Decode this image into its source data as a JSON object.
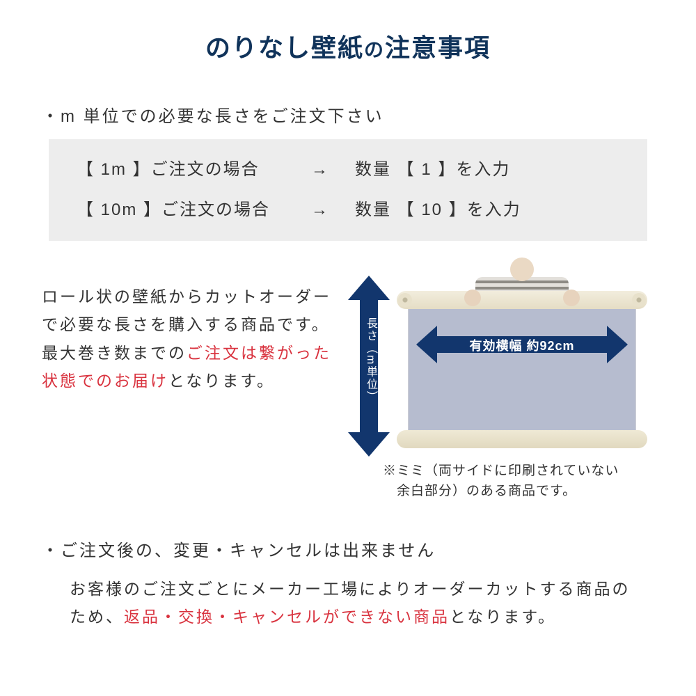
{
  "colors": {
    "title": "#10335a",
    "body": "#333333",
    "emphasis": "#d9333f",
    "box_bg": "#ededed",
    "arrow": "#12366d",
    "paper": "#b6bccf"
  },
  "title": {
    "main": "のりなし壁紙",
    "small": "の",
    "tail": "注意事項"
  },
  "bullet1": "・m 単位での必要な長さをご注文下さい",
  "order_box": {
    "rows": [
      {
        "left": "【 1m 】ご注文の場合",
        "arrow": "→",
        "right": "数量 【 1 】を入力"
      },
      {
        "left": "【 10m 】ご注文の場合",
        "arrow": "→",
        "right": "数量 【 10 】を入力"
      }
    ]
  },
  "paragraph1": {
    "plain1": "ロール状の壁紙からカットオーダーで必要な長さを購入する商品です。最大巻き数までの",
    "em": "ご注文は繋がった状態でのお届け",
    "plain2": "となります。"
  },
  "diagram": {
    "v_label": "長さ（m単位）",
    "h_label": "有効横幅 約92cm",
    "note_l1": "※ミミ（両サイドに印刷されていない",
    "note_l2": "　余白部分）のある商品です。"
  },
  "bullet2": "・ご注文後の、変更・キャンセルは出来ません",
  "paragraph2": {
    "plain1": "お客様のご注文ごとにメーカー工場によりオーダーカットする商品のため、",
    "em": "返品・交換・キャンセルができない商品",
    "plain2": "となります。"
  }
}
